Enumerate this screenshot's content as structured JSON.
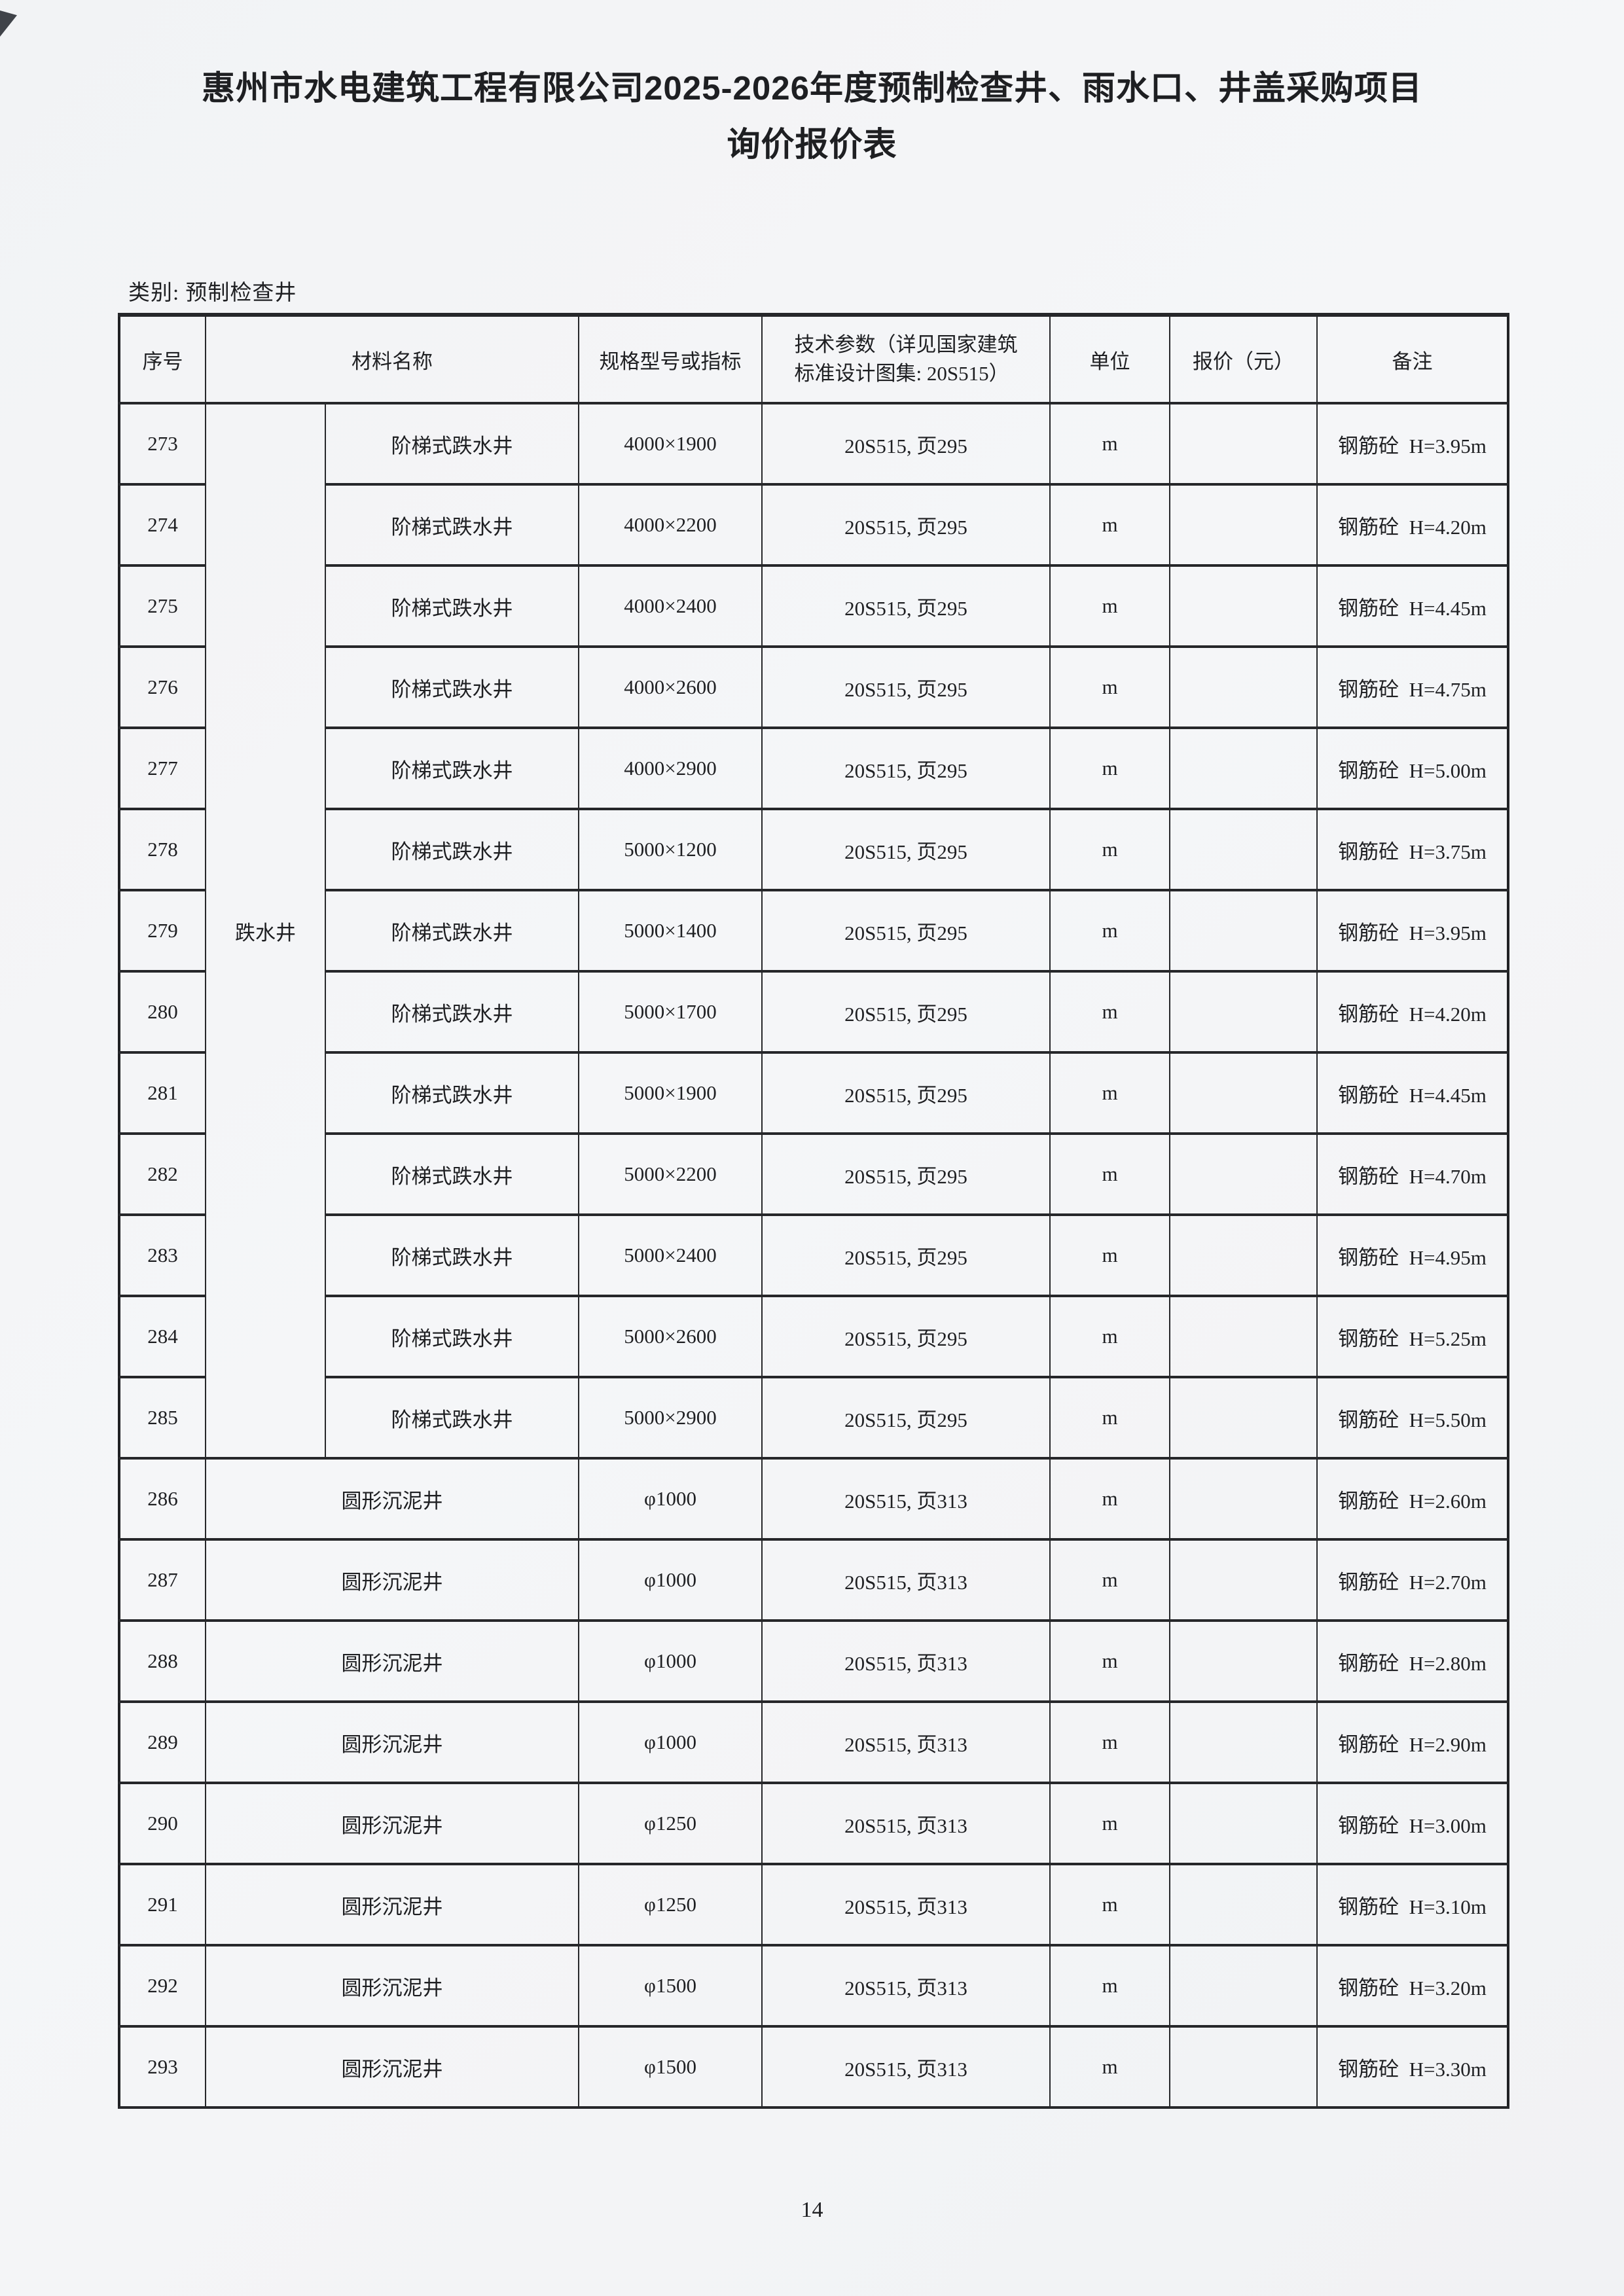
{
  "page": {
    "title_line1": "惠州市水电建筑工程有限公司2025-2026年度预制检查井、雨水口、井盖采购项目",
    "title_line2": "询价报价表",
    "category_label": "类别: 预制检查井",
    "page_number": "14"
  },
  "table": {
    "headers": {
      "no": "序号",
      "material": "材料名称",
      "spec": "规格型号或指标",
      "tech_line1": "技术参数（详见国家建筑",
      "tech_line2": "标准设计图集: 20S515）",
      "unit": "单位",
      "price": "报价（元）",
      "remark": "备注"
    },
    "material_group_label": "跌水井",
    "material_group_rowspan": 13,
    "rows": [
      {
        "no": "273",
        "in_group": true,
        "name": "阶梯式跌水井",
        "spec": "4000×1900",
        "tech": "20S515, 页295",
        "unit": "m",
        "price": "",
        "remark": "钢筋砼  H=3.95m"
      },
      {
        "no": "274",
        "in_group": true,
        "name": "阶梯式跌水井",
        "spec": "4000×2200",
        "tech": "20S515, 页295",
        "unit": "m",
        "price": "",
        "remark": "钢筋砼  H=4.20m"
      },
      {
        "no": "275",
        "in_group": true,
        "name": "阶梯式跌水井",
        "spec": "4000×2400",
        "tech": "20S515, 页295",
        "unit": "m",
        "price": "",
        "remark": "钢筋砼  H=4.45m"
      },
      {
        "no": "276",
        "in_group": true,
        "name": "阶梯式跌水井",
        "spec": "4000×2600",
        "tech": "20S515, 页295",
        "unit": "m",
        "price": "",
        "remark": "钢筋砼  H=4.75m"
      },
      {
        "no": "277",
        "in_group": true,
        "name": "阶梯式跌水井",
        "spec": "4000×2900",
        "tech": "20S515, 页295",
        "unit": "m",
        "price": "",
        "remark": "钢筋砼  H=5.00m"
      },
      {
        "no": "278",
        "in_group": true,
        "name": "阶梯式跌水井",
        "spec": "5000×1200",
        "tech": "20S515, 页295",
        "unit": "m",
        "price": "",
        "remark": "钢筋砼  H=3.75m"
      },
      {
        "no": "279",
        "in_group": true,
        "name": "阶梯式跌水井",
        "spec": "5000×1400",
        "tech": "20S515, 页295",
        "unit": "m",
        "price": "",
        "remark": "钢筋砼  H=3.95m"
      },
      {
        "no": "280",
        "in_group": true,
        "name": "阶梯式跌水井",
        "spec": "5000×1700",
        "tech": "20S515, 页295",
        "unit": "m",
        "price": "",
        "remark": "钢筋砼  H=4.20m"
      },
      {
        "no": "281",
        "in_group": true,
        "name": "阶梯式跌水井",
        "spec": "5000×1900",
        "tech": "20S515, 页295",
        "unit": "m",
        "price": "",
        "remark": "钢筋砼  H=4.45m"
      },
      {
        "no": "282",
        "in_group": true,
        "name": "阶梯式跌水井",
        "spec": "5000×2200",
        "tech": "20S515, 页295",
        "unit": "m",
        "price": "",
        "remark": "钢筋砼  H=4.70m"
      },
      {
        "no": "283",
        "in_group": true,
        "name": "阶梯式跌水井",
        "spec": "5000×2400",
        "tech": "20S515, 页295",
        "unit": "m",
        "price": "",
        "remark": "钢筋砼  H=4.95m"
      },
      {
        "no": "284",
        "in_group": true,
        "name": "阶梯式跌水井",
        "spec": "5000×2600",
        "tech": "20S515, 页295",
        "unit": "m",
        "price": "",
        "remark": "钢筋砼  H=5.25m"
      },
      {
        "no": "285",
        "in_group": true,
        "name": "阶梯式跌水井",
        "spec": "5000×2900",
        "tech": "20S515, 页295",
        "unit": "m",
        "price": "",
        "remark": "钢筋砼  H=5.50m"
      },
      {
        "no": "286",
        "in_group": false,
        "name": "圆形沉泥井",
        "spec": "φ1000",
        "tech": "20S515, 页313",
        "unit": "m",
        "price": "",
        "remark": "钢筋砼  H=2.60m"
      },
      {
        "no": "287",
        "in_group": false,
        "name": "圆形沉泥井",
        "spec": "φ1000",
        "tech": "20S515, 页313",
        "unit": "m",
        "price": "",
        "remark": "钢筋砼  H=2.70m"
      },
      {
        "no": "288",
        "in_group": false,
        "name": "圆形沉泥井",
        "spec": "φ1000",
        "tech": "20S515, 页313",
        "unit": "m",
        "price": "",
        "remark": "钢筋砼  H=2.80m"
      },
      {
        "no": "289",
        "in_group": false,
        "name": "圆形沉泥井",
        "spec": "φ1000",
        "tech": "20S515, 页313",
        "unit": "m",
        "price": "",
        "remark": "钢筋砼  H=2.90m"
      },
      {
        "no": "290",
        "in_group": false,
        "name": "圆形沉泥井",
        "spec": "φ1250",
        "tech": "20S515, 页313",
        "unit": "m",
        "price": "",
        "remark": "钢筋砼  H=3.00m"
      },
      {
        "no": "291",
        "in_group": false,
        "name": "圆形沉泥井",
        "spec": "φ1250",
        "tech": "20S515, 页313",
        "unit": "m",
        "price": "",
        "remark": "钢筋砼  H=3.10m"
      },
      {
        "no": "292",
        "in_group": false,
        "name": "圆形沉泥井",
        "spec": "φ1500",
        "tech": "20S515, 页313",
        "unit": "m",
        "price": "",
        "remark": "钢筋砼  H=3.20m"
      },
      {
        "no": "293",
        "in_group": false,
        "name": "圆形沉泥井",
        "spec": "φ1500",
        "tech": "20S515, 页313",
        "unit": "m",
        "price": "",
        "remark": "钢筋砼  H=3.30m"
      }
    ]
  }
}
